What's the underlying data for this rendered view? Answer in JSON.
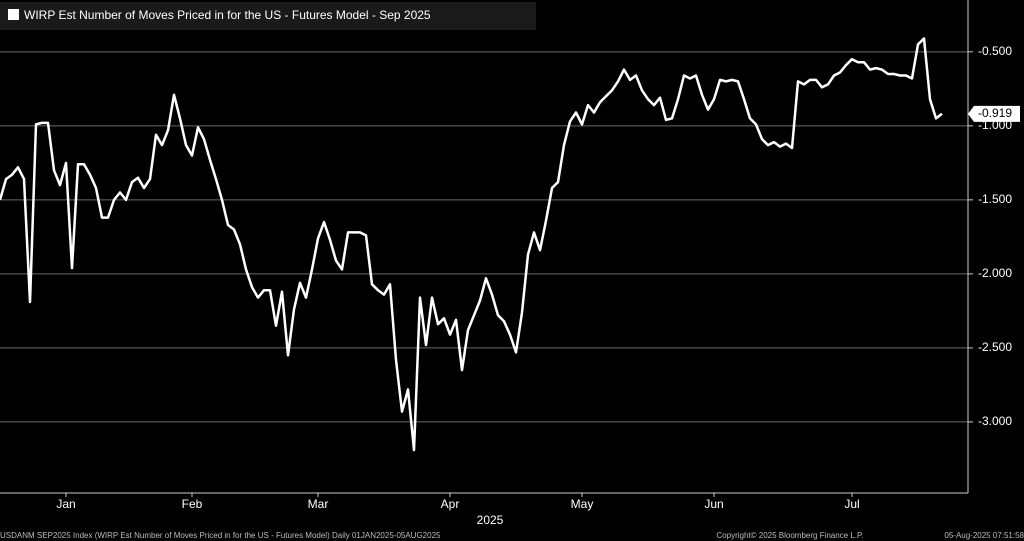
{
  "chart_data": {
    "type": "line",
    "series": [
      {
        "name": "WIRP Est Number of Moves Priced in for the US - Futures Model - Sep 2025",
        "color": "#ffffff",
        "values": [
          -1.5,
          -1.36,
          -1.33,
          -1.28,
          -1.36,
          -2.19,
          -0.99,
          -0.98,
          -0.98,
          -1.3,
          -1.4,
          -1.25,
          -1.96,
          -1.26,
          -1.26,
          -1.33,
          -1.42,
          -1.62,
          -1.62,
          -1.5,
          -1.45,
          -1.5,
          -1.38,
          -1.35,
          -1.42,
          -1.36,
          -1.06,
          -1.13,
          -1.03,
          -0.79,
          -0.95,
          -1.13,
          -1.2,
          -1.01,
          -1.09,
          -1.23,
          -1.36,
          -1.5,
          -1.67,
          -1.7,
          -1.8,
          -1.97,
          -2.09,
          -2.16,
          -2.11,
          -2.11,
          -2.35,
          -2.12,
          -2.55,
          -2.24,
          -2.06,
          -2.16,
          -1.97,
          -1.76,
          -1.65,
          -1.77,
          -1.91,
          -1.97,
          -1.72,
          -1.72,
          -1.72,
          -1.74,
          -2.07,
          -2.11,
          -2.14,
          -2.07,
          -2.58,
          -2.93,
          -2.78,
          -3.19,
          -2.16,
          -2.48,
          -2.16,
          -2.34,
          -2.3,
          -2.41,
          -2.31,
          -2.65,
          -2.38,
          -2.28,
          -2.18,
          -2.03,
          -2.14,
          -2.28,
          -2.32,
          -2.41,
          -2.53,
          -2.26,
          -1.87,
          -1.72,
          -1.84,
          -1.64,
          -1.42,
          -1.38,
          -1.13,
          -0.97,
          -0.91,
          -0.99,
          -0.86,
          -0.91,
          -0.84,
          -0.8,
          -0.76,
          -0.7,
          -0.62,
          -0.69,
          -0.66,
          -0.76,
          -0.82,
          -0.86,
          -0.81,
          -0.96,
          -0.95,
          -0.82,
          -0.66,
          -0.68,
          -0.66,
          -0.79,
          -0.89,
          -0.82,
          -0.69,
          -0.7,
          -0.69,
          -0.7,
          -0.82,
          -0.95,
          -0.99,
          -1.09,
          -1.13,
          -1.11,
          -1.14,
          -1.12,
          -1.15,
          -0.7,
          -0.72,
          -0.69,
          -0.69,
          -0.74,
          -0.72,
          -0.66,
          -0.64,
          -0.59,
          -0.55,
          -0.57,
          -0.57,
          -0.62,
          -0.61,
          -0.62,
          -0.65,
          -0.65,
          -0.66,
          -0.66,
          -0.68,
          -0.45,
          -0.41,
          -0.82,
          -0.95,
          -0.919
        ]
      }
    ],
    "categories": [
      null,
      null,
      null,
      null,
      null,
      null,
      null,
      null,
      null,
      null,
      null,
      "Jan",
      null,
      null,
      null,
      null,
      null,
      null,
      null,
      null,
      null,
      null,
      null,
      null,
      null,
      null,
      null,
      null,
      null,
      null,
      null,
      null,
      "Feb",
      null,
      null,
      null,
      null,
      null,
      null,
      null,
      null,
      null,
      null,
      null,
      null,
      null,
      null,
      null,
      null,
      null,
      null,
      null,
      null,
      "Mar",
      null,
      null,
      null,
      null,
      null,
      null,
      null,
      null,
      null,
      null,
      null,
      null,
      null,
      null,
      null,
      null,
      null,
      null,
      null,
      null,
      null,
      "Apr",
      null,
      null,
      null,
      null,
      null,
      null,
      null,
      null,
      null,
      null,
      null,
      null,
      null,
      null,
      null,
      null,
      null,
      null,
      null,
      null,
      null,
      "May",
      null,
      null,
      null,
      null,
      null,
      null,
      null,
      null,
      null,
      null,
      null,
      null,
      null,
      null,
      null,
      null,
      null,
      null,
      null,
      null,
      null,
      "Jun",
      null,
      null,
      null,
      null,
      null,
      null,
      null,
      null,
      null,
      null,
      null,
      null,
      null,
      null,
      null,
      null,
      null,
      null,
      null,
      null,
      null,
      null,
      "Jul",
      null,
      null,
      null,
      null,
      null,
      null,
      null,
      null,
      null,
      null,
      null,
      null,
      null,
      null,
      null
    ],
    "x_label": "2025",
    "ylim": [
      -3.48,
      -0.15
    ],
    "yticks": [
      {
        "value": -3,
        "label": "-3.000"
      },
      {
        "value": -2.5,
        "label": "-2.500"
      },
      {
        "value": -2,
        "label": "-2.000"
      },
      {
        "value": -1.5,
        "label": "-1.500"
      },
      {
        "value": -1,
        "label": "-1.000"
      },
      {
        "value": -0.5,
        "label": "-0.500"
      }
    ],
    "grid": true,
    "footer_left": "USDANM SEP2025 Index (WIRP Est Number of Moves Priced in for the US - Futures Model) Daily 01JAN2025-05AUG2025",
    "footer_center": "Copyright© 2025 Bloomberg Finance L.P.",
    "footer_right": "05-Aug-2025 07:51:58"
  }
}
